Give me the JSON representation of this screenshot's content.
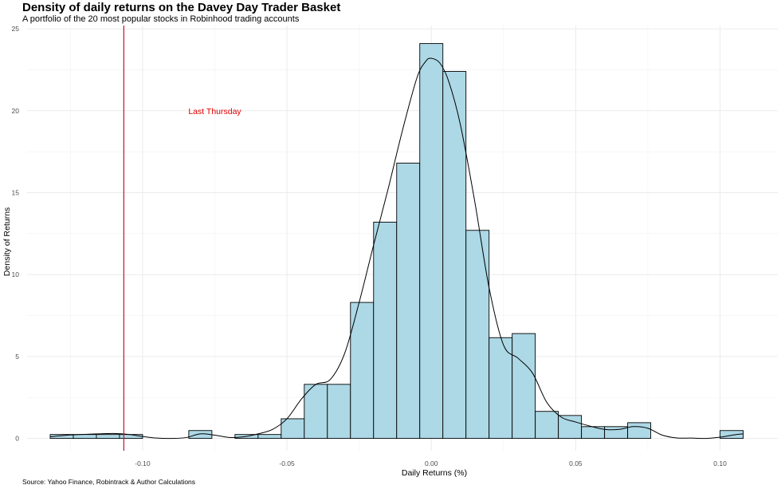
{
  "chart_data": {
    "type": "histogram",
    "title": "Density of daily returns on the Davey Day Trader Basket",
    "subtitle": "A portfolio of the 20 most popular stocks in Robinhood trading accounts",
    "caption": "Source: Yahoo Finance, Robintrack & Author Calculations",
    "xlabel": "Daily Returns (%)",
    "ylabel": "Density of Returns",
    "xlim": [
      -0.14,
      0.12
    ],
    "ylim": [
      -0.75,
      25.2
    ],
    "x_ticks": [
      -0.1,
      -0.05,
      0.0,
      0.05,
      0.1
    ],
    "x_tick_labels": [
      "-0.10",
      "-0.05",
      "0.00",
      "0.05",
      "0.10"
    ],
    "y_ticks": [
      0,
      5,
      10,
      15,
      20,
      25
    ],
    "y_tick_labels": [
      "0",
      "5",
      "10",
      "15",
      "20",
      "25"
    ],
    "bin_width": 0.008,
    "bins": [
      {
        "x0": -0.132,
        "x1": -0.124,
        "density": 0.24
      },
      {
        "x0": -0.124,
        "x1": -0.116,
        "density": 0.24
      },
      {
        "x0": -0.116,
        "x1": -0.108,
        "density": 0.24
      },
      {
        "x0": -0.108,
        "x1": -0.1,
        "density": 0.24
      },
      {
        "x0": -0.084,
        "x1": -0.076,
        "density": 0.48
      },
      {
        "x0": -0.068,
        "x1": -0.06,
        "density": 0.24
      },
      {
        "x0": -0.06,
        "x1": -0.052,
        "density": 0.24
      },
      {
        "x0": -0.052,
        "x1": -0.044,
        "density": 1.2
      },
      {
        "x0": -0.044,
        "x1": -0.036,
        "density": 3.3
      },
      {
        "x0": -0.036,
        "x1": -0.028,
        "density": 3.3
      },
      {
        "x0": -0.028,
        "x1": -0.02,
        "density": 8.3
      },
      {
        "x0": -0.02,
        "x1": -0.012,
        "density": 13.2
      },
      {
        "x0": -0.012,
        "x1": -0.004,
        "density": 16.8
      },
      {
        "x0": -0.004,
        "x1": 0.004,
        "density": 24.1
      },
      {
        "x0": 0.004,
        "x1": 0.012,
        "density": 22.4
      },
      {
        "x0": 0.012,
        "x1": 0.02,
        "density": 12.7
      },
      {
        "x0": 0.02,
        "x1": 0.028,
        "density": 6.15
      },
      {
        "x0": 0.028,
        "x1": 0.036,
        "density": 6.4
      },
      {
        "x0": 0.036,
        "x1": 0.044,
        "density": 1.65
      },
      {
        "x0": 0.044,
        "x1": 0.052,
        "density": 1.4
      },
      {
        "x0": 0.052,
        "x1": 0.06,
        "density": 0.72
      },
      {
        "x0": 0.06,
        "x1": 0.068,
        "density": 0.72
      },
      {
        "x0": 0.068,
        "x1": 0.076,
        "density": 0.96
      },
      {
        "x0": 0.1,
        "x1": 0.108,
        "density": 0.48
      }
    ],
    "density_curve": {
      "x": [
        -0.132,
        -0.126,
        -0.12,
        -0.115,
        -0.11,
        -0.105,
        -0.1,
        -0.095,
        -0.09,
        -0.085,
        -0.08,
        -0.075,
        -0.07,
        -0.065,
        -0.06,
        -0.055,
        -0.05,
        -0.045,
        -0.04,
        -0.035,
        -0.03,
        -0.025,
        -0.02,
        -0.015,
        -0.01,
        -0.005,
        -0.002,
        0.0,
        0.003,
        0.006,
        0.01,
        0.015,
        0.02,
        0.025,
        0.03,
        0.035,
        0.04,
        0.045,
        0.05,
        0.055,
        0.06,
        0.065,
        0.07,
        0.075,
        0.08,
        0.085,
        0.09,
        0.095,
        0.1,
        0.105,
        0.108
      ],
      "y": [
        0.1,
        0.2,
        0.25,
        0.28,
        0.3,
        0.25,
        0.12,
        0.02,
        0.0,
        0.05,
        0.28,
        0.2,
        0.06,
        0.1,
        0.28,
        0.55,
        1.2,
        2.4,
        3.3,
        3.6,
        5.2,
        8.3,
        11.8,
        15.2,
        18.8,
        22.0,
        23.0,
        23.2,
        22.9,
        21.8,
        19.2,
        14.5,
        9.2,
        5.7,
        4.9,
        4.0,
        2.2,
        1.3,
        1.0,
        0.75,
        0.55,
        0.55,
        0.72,
        0.62,
        0.2,
        0.03,
        0.02,
        0.0,
        0.08,
        0.22,
        0.28
      ]
    },
    "vline": {
      "x": -0.1065,
      "color": "#c8102e"
    },
    "annotation": {
      "text": "Last Thursday",
      "x": -0.075,
      "y": 20.0,
      "color": "#e00000"
    },
    "bar_fill": "#add8e6",
    "bar_stroke": "#000000",
    "grid": true,
    "legend": "none"
  }
}
